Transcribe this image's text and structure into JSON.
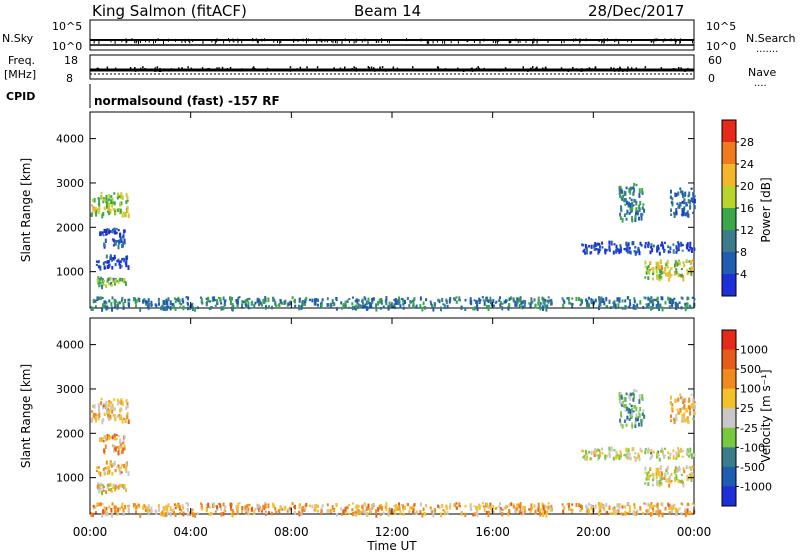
{
  "header": {
    "station": "King Salmon (fitACF)",
    "beam": "Beam 14",
    "date": "28/Dec/2017"
  },
  "status_panels": {
    "nsky_label": "N.Sky",
    "nsearch_label": "N.Search",
    "left_top_tick": "10^5",
    "left_bottom_tick": "10^0",
    "right_top_tick": "10^5",
    "right_bottom_tick": "10^0",
    "freq_label": "Freq.",
    "freq_unit": "[MHz]",
    "freq_ticks": [
      "18",
      "8"
    ],
    "nave_label": "Nave",
    "nave_ticks": [
      "60",
      "0"
    ],
    "cpid_label": "CPID",
    "cpid_text": "normalsound (fast) -157 RF"
  },
  "chart_data": [
    {
      "type": "heatmap",
      "name": "power",
      "xlabel": "",
      "ylabel": "Slant Range [km]",
      "xlim": [
        0,
        24
      ],
      "ylim": [
        180,
        4600
      ],
      "yticks": [
        "1000",
        "2000",
        "3000",
        "4000"
      ],
      "colorbar_label": "Power [dB]",
      "colorbar_ticks": [
        "4",
        "8",
        "12",
        "16",
        "20",
        "24",
        "28"
      ],
      "colors": [
        "#1d2fd8",
        "#1f5db0",
        "#3b7c8a",
        "#3aa84a",
        "#b9d42a",
        "#f4b62c",
        "#f07a1c",
        "#e62a1a"
      ],
      "patches": [
        {
          "t0": 0.0,
          "t1": 1.5,
          "r0": 2300,
          "r1": 2800,
          "level": 0.55
        },
        {
          "t0": 0.2,
          "t1": 1.4,
          "r0": 700,
          "r1": 900,
          "level": 0.45
        },
        {
          "t0": 0.2,
          "t1": 1.5,
          "r0": 1100,
          "r1": 1400,
          "level": 0.12
        },
        {
          "t0": 0.3,
          "t1": 1.4,
          "r0": 1600,
          "r1": 2000,
          "level": 0.15
        },
        {
          "t0": 21.0,
          "t1": 22.0,
          "r0": 2200,
          "r1": 3000,
          "level": 0.3
        },
        {
          "t0": 22.0,
          "t1": 24.0,
          "r0": 850,
          "r1": 1300,
          "level": 0.6
        },
        {
          "t0": 19.5,
          "t1": 24.0,
          "r0": 1450,
          "r1": 1700,
          "level": 0.1
        },
        {
          "t0": 23.0,
          "t1": 24.0,
          "r0": 2300,
          "r1": 2900,
          "level": 0.2
        },
        {
          "t0": 0.0,
          "t1": 24.0,
          "r0": 200,
          "r1": 450,
          "level": 0.3
        }
      ]
    },
    {
      "type": "heatmap",
      "name": "velocity",
      "xlabel": "Time UT",
      "ylabel": "Slant Range [km]",
      "xlim": [
        0,
        24
      ],
      "ylim": [
        180,
        4600
      ],
      "xticks": [
        "00:00",
        "04:00",
        "08:00",
        "12:00",
        "16:00",
        "20:00",
        "00:00"
      ],
      "yticks": [
        "1000",
        "2000",
        "3000",
        "4000"
      ],
      "colorbar_label": "Velocity [m s⁻¹]",
      "colorbar_ticks": [
        "1000",
        "500",
        "100",
        "25",
        "-25",
        "-100",
        "-500",
        "-1000"
      ],
      "colors": [
        "#1d2fd8",
        "#1f5db0",
        "#3b7c8a",
        "#78c840",
        "#c8c8c8",
        "#f4c02c",
        "#f08a1c",
        "#e65a1a",
        "#e62a1a"
      ],
      "patches": [
        {
          "t0": 0.0,
          "t1": 1.5,
          "r0": 2300,
          "r1": 2800,
          "level": 0.62
        },
        {
          "t0": 0.2,
          "t1": 1.4,
          "r0": 700,
          "r1": 900,
          "level": 0.55
        },
        {
          "t0": 0.2,
          "t1": 1.5,
          "r0": 1100,
          "r1": 1400,
          "level": 0.64
        },
        {
          "t0": 0.3,
          "t1": 1.4,
          "r0": 1600,
          "r1": 2000,
          "level": 0.66
        },
        {
          "t0": 21.0,
          "t1": 22.0,
          "r0": 2200,
          "r1": 3000,
          "level": 0.35
        },
        {
          "t0": 22.0,
          "t1": 24.0,
          "r0": 850,
          "r1": 1300,
          "level": 0.55
        },
        {
          "t0": 19.5,
          "t1": 24.0,
          "r0": 1450,
          "r1": 1700,
          "level": 0.5
        },
        {
          "t0": 23.0,
          "t1": 24.0,
          "r0": 2300,
          "r1": 2900,
          "level": 0.6
        },
        {
          "t0": 0.0,
          "t1": 24.0,
          "r0": 200,
          "r1": 450,
          "level": 0.65
        }
      ]
    }
  ]
}
